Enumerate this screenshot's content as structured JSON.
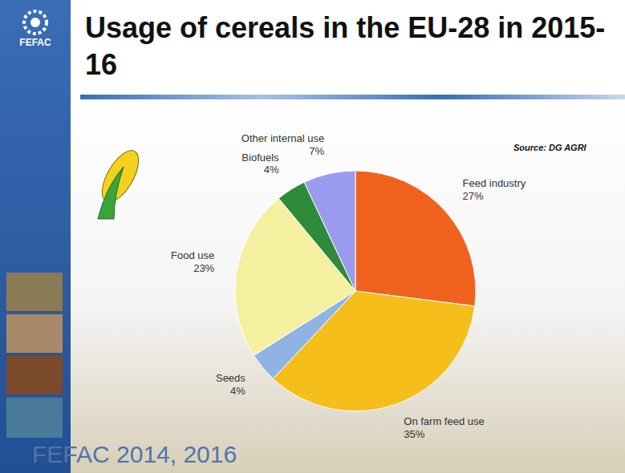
{
  "chart_data": {
    "type": "pie",
    "title": "Usage of cereals in the EU-28 in 2015-16",
    "source": "Source: DG AGRI",
    "categories": [
      "Feed industry",
      "On farm feed use",
      "Seeds",
      "Food use",
      "Biofuels",
      "Other internal use"
    ],
    "values": [
      27,
      35,
      4,
      23,
      4,
      7
    ],
    "value_labels": [
      "27%",
      "35%",
      "4%",
      "23%",
      "4%",
      "7%"
    ],
    "colors": [
      "#f0621e",
      "#f5be1a",
      "#8fb4e3",
      "#f5f0a0",
      "#2e8b3a",
      "#9a9aee"
    ],
    "data_labels": true
  },
  "logo_text": "FEFAC",
  "footer": "FEFAC 2014, 2016"
}
